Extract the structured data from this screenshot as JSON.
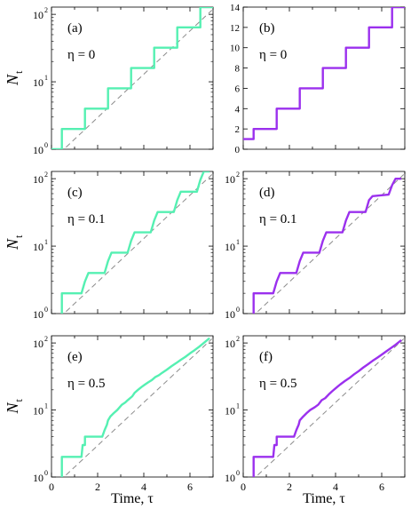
{
  "figure": {
    "xlabel": "Time, τ",
    "ylabel_main": "N",
    "ylabel_sub": "t"
  },
  "colors": {
    "green": "#55f0b2",
    "purple": "#9b30ee",
    "dash": "#8c8c8c"
  },
  "chart_data": [
    {
      "id": "a",
      "type": "line",
      "panel_label": "(a)",
      "eta_label": "η = 0",
      "yscale": "log",
      "xlim": [
        0,
        7
      ],
      "ylim": [
        1,
        128
      ],
      "yticklabels": [
        "10",
        "10",
        "10"
      ],
      "ytick_exponents": [
        "0",
        "1",
        "2"
      ],
      "xticklabels": [],
      "color": "green",
      "reference_line": {
        "style": "dashed",
        "x": [
          0.35,
          6.95
        ],
        "y": [
          0.87,
          115
        ]
      },
      "series": [
        {
          "x": [
            0,
            0.45,
            0.45,
            1.45,
            1.45,
            2.45,
            2.45,
            3.45,
            3.45,
            4.45,
            4.45,
            5.45,
            5.45,
            6.45,
            6.45,
            7
          ],
          "y": [
            1,
            1,
            2,
            2,
            4,
            4,
            8,
            8,
            16,
            16,
            32,
            32,
            64,
            64,
            128,
            128
          ]
        }
      ]
    },
    {
      "id": "b",
      "type": "line",
      "panel_label": "(b)",
      "eta_label": "η = 0",
      "yscale": "linear",
      "xlim": [
        0,
        7
      ],
      "ylim": [
        0,
        14
      ],
      "yticklabels": [
        "0",
        "2",
        "4",
        "6",
        "8",
        "10",
        "12",
        "14"
      ],
      "xticklabels": [],
      "color": "purple",
      "series": [
        {
          "x": [
            0,
            0.45,
            0.45,
            1.45,
            1.45,
            2.45,
            2.45,
            3.45,
            3.45,
            4.45,
            4.45,
            5.45,
            5.45,
            6.45,
            6.45,
            7
          ],
          "y": [
            1,
            1,
            2,
            2,
            4,
            4,
            6,
            6,
            8,
            8,
            10,
            10,
            12,
            12,
            14,
            14
          ]
        }
      ]
    },
    {
      "id": "c",
      "type": "line",
      "panel_label": "(c)",
      "eta_label": "η = 0.1",
      "yscale": "log",
      "xlim": [
        0,
        7
      ],
      "ylim": [
        1,
        128
      ],
      "yticklabels": [
        "10",
        "10",
        "10"
      ],
      "ytick_exponents": [
        "0",
        "1",
        "2"
      ],
      "xticklabels": [],
      "color": "green",
      "reference_line": {
        "style": "dashed",
        "x": [
          0.35,
          6.95
        ],
        "y": [
          0.87,
          115
        ]
      },
      "series": [
        {
          "x": [
            0.45,
            0.45,
            1.3,
            1.45,
            1.6,
            2.3,
            2.45,
            2.6,
            3.3,
            3.45,
            3.6,
            4.3,
            4.45,
            4.6,
            5.3,
            5.45,
            5.6,
            6.3,
            6.45,
            6.6,
            6.85
          ],
          "y": [
            1,
            2,
            2,
            3,
            4,
            4,
            6,
            8,
            8,
            12,
            16,
            16,
            24,
            32,
            32,
            48,
            64,
            64,
            96,
            128,
            128
          ]
        }
      ]
    },
    {
      "id": "d",
      "type": "line",
      "panel_label": "(d)",
      "eta_label": "η = 0.1",
      "yscale": "log",
      "xlim": [
        0,
        7
      ],
      "ylim": [
        1,
        128
      ],
      "yticklabels": [
        "10",
        "10",
        "10"
      ],
      "ytick_exponents": [
        "0",
        "1",
        "2"
      ],
      "xticklabels": [],
      "color": "purple",
      "reference_line": {
        "style": "dashed",
        "x": [
          0.35,
          6.95
        ],
        "y": [
          0.87,
          115
        ]
      },
      "series": [
        {
          "x": [
            0.45,
            0.45,
            1.3,
            1.45,
            1.6,
            2.3,
            2.45,
            2.6,
            3.3,
            3.45,
            3.6,
            4.3,
            4.45,
            4.6,
            5.3,
            5.45,
            5.6,
            6.3,
            6.45,
            6.6,
            6.85
          ],
          "y": [
            1,
            2,
            2,
            3,
            4,
            4,
            6,
            8,
            8,
            12,
            16,
            16,
            24,
            32,
            32,
            48,
            55,
            58,
            80,
            100,
            100
          ]
        }
      ]
    },
    {
      "id": "e",
      "type": "line",
      "panel_label": "(e)",
      "eta_label": "η = 0.5",
      "yscale": "log",
      "xlim": [
        0,
        7
      ],
      "ylim": [
        1,
        128
      ],
      "yticklabels": [
        "10",
        "10",
        "10"
      ],
      "ytick_exponents": [
        "0",
        "1",
        "2"
      ],
      "xticklabels": [
        "0",
        "2",
        "4",
        "6"
      ],
      "color": "green",
      "reference_line": {
        "style": "dashed",
        "x": [
          0.35,
          6.95
        ],
        "y": [
          0.87,
          115
        ]
      },
      "series": [
        {
          "x": [
            0.45,
            0.45,
            1.3,
            1.35,
            1.45,
            1.45,
            2.2,
            2.3,
            2.4,
            2.45,
            2.55,
            2.7,
            2.85,
            3.05,
            3.2,
            3.3,
            3.5,
            3.6,
            3.75,
            3.9,
            4.05,
            4.2,
            4.35,
            4.5,
            4.65,
            4.8,
            5.0,
            5.2,
            5.4,
            5.6,
            5.8,
            6.0,
            6.2,
            6.4,
            6.6,
            6.85
          ],
          "y": [
            1,
            2,
            2,
            3,
            3,
            4,
            4,
            5,
            6,
            7,
            8,
            9,
            10,
            12,
            13,
            14,
            16,
            18,
            20,
            22,
            24,
            26,
            28,
            31,
            33,
            36,
            40,
            45,
            50,
            56,
            62,
            70,
            78,
            88,
            100,
            118
          ]
        }
      ]
    },
    {
      "id": "f",
      "type": "line",
      "panel_label": "(f)",
      "eta_label": "η = 0.5",
      "yscale": "log",
      "xlim": [
        0,
        7
      ],
      "ylim": [
        1,
        128
      ],
      "yticklabels": [
        "10",
        "10",
        "10"
      ],
      "ytick_exponents": [
        "0",
        "1",
        "2"
      ],
      "xticklabels": [
        "0",
        "2",
        "4",
        "6"
      ],
      "color": "purple",
      "reference_line": {
        "style": "dashed",
        "x": [
          0.35,
          6.95
        ],
        "y": [
          0.87,
          115
        ]
      },
      "series": [
        {
          "x": [
            0.45,
            0.45,
            1.3,
            1.35,
            1.45,
            1.45,
            2.2,
            2.3,
            2.4,
            2.45,
            2.6,
            2.75,
            2.9,
            3.1,
            3.25,
            3.4,
            3.55,
            3.7,
            3.85,
            4.0,
            4.2,
            4.4,
            4.6,
            4.8,
            5.0,
            5.2,
            5.4,
            5.6,
            5.8,
            6.0,
            6.2,
            6.4,
            6.6,
            6.85
          ],
          "y": [
            1,
            2,
            2,
            3,
            3,
            4,
            4,
            5,
            6,
            7,
            8,
            9,
            10,
            11,
            12,
            14,
            15,
            17,
            19,
            21,
            24,
            27,
            30,
            34,
            38,
            43,
            48,
            54,
            60,
            67,
            75,
            84,
            94,
            110
          ]
        }
      ]
    }
  ]
}
